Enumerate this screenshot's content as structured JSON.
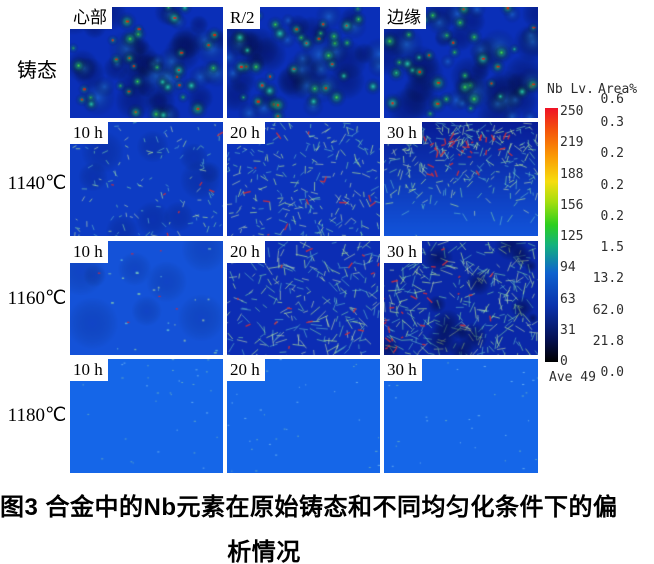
{
  "figure": {
    "rows": [
      {
        "label": "铸态",
        "panels": [
          "心部",
          "R/2",
          "边缘"
        ]
      },
      {
        "label": "1140℃",
        "panels": [
          "10 h",
          "20 h",
          "30 h"
        ]
      },
      {
        "label": "1160℃",
        "panels": [
          "10 h",
          "20 h",
          "30 h"
        ]
      },
      {
        "label": "1180℃",
        "panels": [
          "10 h",
          "20 h",
          "30 h"
        ]
      }
    ],
    "scale": {
      "level_header": "Nb Lv.",
      "area_header": "Area%",
      "levels": [
        "250",
        "219",
        "188",
        "156",
        "125",
        "94",
        "63",
        "31",
        "0"
      ],
      "areas": [
        "0.6",
        "0.3",
        "0.2",
        "0.2",
        "0.2",
        "1.5",
        "13.2",
        "62.0",
        "21.8",
        "0.0"
      ],
      "average": "Ave 49"
    },
    "caption": {
      "line1": "图3 合金中的Nb元素在原始铸态和不同均匀化条件下的偏",
      "line2": "析情况"
    }
  },
  "chart_data": {
    "type": "heatmap",
    "title": "图3 合金中的Nb元素在原始铸态和不同均匀化条件下的偏析情况",
    "grid": {
      "row_labels": [
        "铸态",
        "1140℃",
        "1160℃",
        "1180℃"
      ],
      "cast_row_columns": [
        "心部",
        "R/2",
        "边缘"
      ],
      "homogenized_row_columns": [
        "10 h",
        "20 h",
        "30 h"
      ]
    },
    "colorbar": {
      "label": "Nb Lv.",
      "levels": [
        250,
        219,
        188,
        156,
        125,
        94,
        63,
        31,
        0
      ],
      "area_percent_label": "Area%",
      "area_percent": [
        0.6,
        0.3,
        0.2,
        0.2,
        0.2,
        1.5,
        13.2,
        62.0,
        21.8,
        0.0
      ],
      "average_level": 49,
      "colors_top_to_bottom": [
        "#ef1226",
        "#fa9a04",
        "#f6dd0e",
        "#2ccf1e",
        "#0e62cf",
        "#0a32ac",
        "#000000"
      ]
    },
    "legend_position": "right"
  }
}
